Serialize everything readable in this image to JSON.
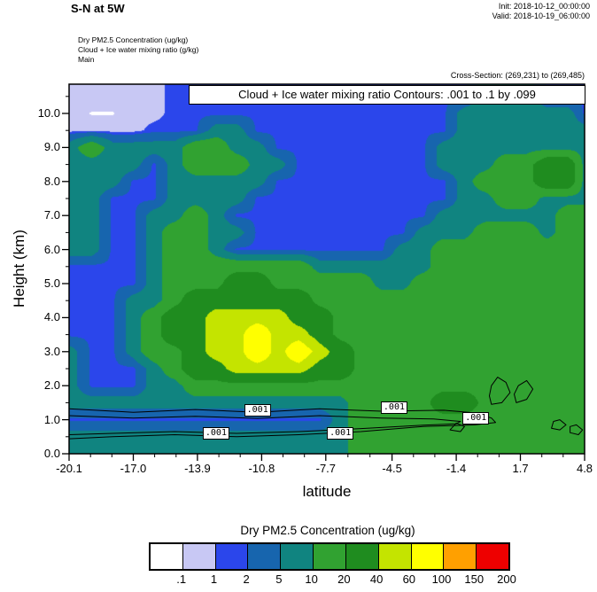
{
  "header": {
    "title": "S-N at 5W",
    "init": "Init: 2018-10-12_00:00:00",
    "valid": "Valid: 2018-10-19_06:00:00",
    "field_lines": [
      "Dry PM2.5 Concentration   (ug/kg)",
      "Cloud + Ice water mixing ratio   (g/kg)",
      "Main"
    ],
    "cross_section": "Cross-Section: (269,231) to (269,485)"
  },
  "chart_data": {
    "type": "heatmap",
    "title": "Cloud + Ice water mixing ratio Contours: .001 to .1 by .099",
    "xlabel": "latitude",
    "ylabel": "Height (km)",
    "xlim": [
      -20.1,
      4.8
    ],
    "ylim": [
      0,
      10.86
    ],
    "x_ticks": [
      -20.1,
      -17.0,
      -13.9,
      -10.8,
      -7.7,
      -4.5,
      -1.4,
      1.7,
      4.8
    ],
    "x_tick_labels": [
      "-20.1",
      "-17.0",
      "-13.9",
      "-10.8",
      "-7.7",
      "-4.5",
      "-1.4",
      "1.7",
      "4.8"
    ],
    "y_ticks": [
      0,
      1,
      2,
      3,
      4,
      5,
      6,
      7,
      8,
      9,
      10
    ],
    "y_tick_labels": [
      "0.0",
      "1.0",
      "2.0",
      "3.0",
      "4.0",
      "5.0",
      "6.0",
      "7.0",
      "8.0",
      "9.0",
      "10.0"
    ],
    "levels": [
      0.1,
      1,
      2,
      5,
      10,
      20,
      40,
      60,
      100,
      150
    ],
    "colors": [
      "#FFFFFF",
      "#C8C8F4",
      "#2B46EB",
      "#1765AE",
      "#108480",
      "#31A231",
      "#1F8C1F",
      "#C4E400",
      "#FFFF00",
      "#FFA000",
      "#EE0000"
    ],
    "grid": {
      "x": [
        -20.1,
        -19,
        -18,
        -17,
        -16,
        -15,
        -14,
        -13,
        -12,
        -11,
        -10,
        -9,
        -8,
        -7,
        -6,
        -5,
        -4,
        -3,
        -2,
        -1,
        0,
        1,
        2,
        3,
        4,
        4.8
      ],
      "y": [
        0,
        0.5,
        1,
        1.5,
        2,
        2.5,
        3,
        3.5,
        4,
        4.5,
        5,
        5.5,
        6,
        6.5,
        7,
        7.5,
        8,
        8.5,
        9,
        9.5,
        10,
        10.5
      ],
      "values": [
        [
          7,
          7,
          7,
          7,
          7,
          7,
          7,
          7,
          7,
          7,
          7,
          7,
          7,
          7,
          15,
          15,
          15,
          15,
          15,
          15,
          15,
          15,
          15,
          15,
          15,
          15
        ],
        [
          7,
          7,
          7,
          7,
          7,
          7,
          7,
          7,
          7,
          7,
          7,
          7,
          7,
          7,
          15,
          15,
          15,
          15,
          15,
          15,
          15,
          15,
          15,
          15,
          15,
          15
        ],
        [
          1.5,
          1.5,
          1.5,
          1.5,
          1.5,
          1.5,
          1.5,
          1.5,
          1.5,
          1.5,
          1.5,
          1.5,
          1.5,
          7,
          15,
          15,
          15,
          15,
          15,
          15,
          15,
          15,
          15,
          15,
          15,
          15
        ],
        [
          7,
          7,
          7,
          7,
          7,
          7,
          7,
          7,
          7,
          7,
          7,
          7,
          7,
          7,
          15,
          15,
          15,
          15,
          30,
          30,
          15,
          15,
          15,
          15,
          15,
          15
        ],
        [
          7,
          1.5,
          1.5,
          1.5,
          7,
          7,
          15,
          15,
          15,
          15,
          15,
          15,
          15,
          15,
          15,
          15,
          15,
          15,
          15,
          15,
          15,
          15,
          15,
          15,
          15,
          15
        ],
        [
          7,
          1.5,
          1.5,
          1.5,
          7,
          15,
          30,
          30,
          50,
          50,
          50,
          50,
          30,
          30,
          15,
          15,
          15,
          15,
          15,
          15,
          15,
          15,
          15,
          15,
          15,
          15
        ],
        [
          7,
          1.5,
          1.5,
          7,
          15,
          15,
          30,
          50,
          50,
          80,
          50,
          80,
          50,
          30,
          15,
          15,
          15,
          15,
          15,
          15,
          15,
          15,
          15,
          15,
          15,
          15
        ],
        [
          1.5,
          1.5,
          1.5,
          7,
          15,
          30,
          30,
          50,
          50,
          80,
          50,
          50,
          30,
          15,
          15,
          15,
          15,
          15,
          15,
          15,
          15,
          15,
          15,
          15,
          15,
          15
        ],
        [
          1.5,
          1.5,
          1.5,
          7,
          15,
          30,
          30,
          50,
          50,
          50,
          50,
          30,
          30,
          15,
          15,
          15,
          15,
          15,
          15,
          15,
          15,
          15,
          15,
          15,
          15,
          15
        ],
        [
          1.5,
          1.5,
          1.5,
          7,
          7,
          15,
          30,
          30,
          30,
          30,
          30,
          30,
          15,
          15,
          15,
          15,
          15,
          15,
          15,
          15,
          15,
          15,
          15,
          15,
          15,
          15
        ],
        [
          1.5,
          1.5,
          1.5,
          1.5,
          7,
          15,
          15,
          15,
          30,
          30,
          15,
          15,
          15,
          15,
          15,
          7,
          7,
          15,
          15,
          15,
          15,
          15,
          15,
          15,
          15,
          15
        ],
        [
          1.5,
          1.5,
          1.5,
          1.5,
          7,
          15,
          15,
          15,
          15,
          15,
          15,
          15,
          7,
          7,
          7,
          7,
          7,
          7,
          15,
          15,
          15,
          15,
          15,
          15,
          15,
          15
        ],
        [
          7,
          7,
          1.5,
          1.5,
          7,
          15,
          15,
          7,
          1.5,
          1.5,
          1.5,
          1.5,
          1.5,
          1.5,
          1.5,
          1.5,
          7,
          7,
          15,
          15,
          15,
          15,
          15,
          15,
          15,
          15
        ],
        [
          7,
          7,
          1.5,
          1.5,
          7,
          15,
          15,
          7,
          7,
          1.5,
          1.5,
          1.5,
          1.5,
          1.5,
          1.5,
          1.5,
          1.5,
          7,
          7,
          7,
          15,
          15,
          15,
          7,
          15,
          15
        ],
        [
          7,
          7,
          1.5,
          1.5,
          7,
          7,
          15,
          7,
          1.5,
          1.5,
          1.5,
          1.5,
          1.5,
          1.5,
          1.5,
          1.5,
          1.5,
          1.5,
          7,
          7,
          7,
          7,
          7,
          7,
          15,
          15
        ],
        [
          7,
          7,
          1.5,
          1.5,
          1.5,
          7,
          7,
          7,
          7,
          1.5,
          1.5,
          1.5,
          1.5,
          1.5,
          1.5,
          1.5,
          1.5,
          1.5,
          1.5,
          7,
          7,
          15,
          15,
          7,
          7,
          7
        ],
        [
          7,
          7,
          7,
          1.5,
          1.5,
          7,
          7,
          7,
          7,
          7,
          1.5,
          1.5,
          1.5,
          1.5,
          1.5,
          1.5,
          1.5,
          1.5,
          1.5,
          7,
          15,
          15,
          15,
          30,
          30,
          7
        ],
        [
          7,
          7,
          7,
          7,
          1.5,
          7,
          15,
          15,
          15,
          7,
          7,
          1.5,
          1.5,
          1.5,
          1.5,
          1.5,
          1.5,
          1.5,
          7,
          7,
          7,
          15,
          15,
          30,
          30,
          7
        ],
        [
          7,
          15,
          7,
          7,
          7,
          7,
          15,
          15,
          7,
          7,
          1.5,
          1.5,
          1.5,
          1.5,
          1.5,
          1.5,
          1.5,
          1.5,
          7,
          7,
          7,
          7,
          7,
          7,
          7,
          7
        ],
        [
          0.5,
          0.5,
          0.5,
          0.5,
          1.5,
          1.5,
          1.5,
          7,
          7,
          1.5,
          1.5,
          1.5,
          1.5,
          1.5,
          1.5,
          1.5,
          1.5,
          1.5,
          1.5,
          7,
          7,
          7,
          7,
          7,
          7,
          7
        ],
        [
          0.5,
          0.05,
          0.05,
          0.5,
          0.5,
          1.5,
          1.5,
          1.5,
          1.5,
          1.5,
          1.5,
          1.5,
          1.5,
          1.5,
          1.5,
          1.5,
          1.5,
          1.5,
          1.5,
          7,
          7,
          7,
          7,
          7,
          7,
          1.5
        ],
        [
          0.5,
          0.5,
          0.5,
          0.5,
          0.5,
          1.5,
          1.5,
          1.5,
          1.5,
          1.5,
          1.5,
          1.5,
          1.5,
          1.5,
          1.5,
          1.5,
          1.5,
          1.5,
          1.5,
          1.5,
          7,
          7,
          7,
          1.5,
          1.5,
          1.5
        ]
      ]
    },
    "contours": {
      "level_label": ".001",
      "labels": [
        {
          "lat": -11.0,
          "h": 1.27
        },
        {
          "lat": -4.4,
          "h": 1.35
        },
        {
          "lat": -0.45,
          "h": 1.05
        },
        {
          "lat": -13.0,
          "h": 0.6
        },
        {
          "lat": -7.0,
          "h": 0.6
        }
      ],
      "paths": [
        {
          "closed": false,
          "pts": [
            [
              -20.1,
              1.32
            ],
            [
              -17,
              1.22
            ],
            [
              -14,
              1.3
            ],
            [
              -11,
              1.22
            ],
            [
              -8,
              1.32
            ],
            [
              -5,
              1.25
            ],
            [
              -2,
              1.28
            ],
            [
              -0.5,
              1.2
            ],
            [
              0.3,
              1.05
            ],
            [
              0.5,
              0.92
            ],
            [
              -0.5,
              0.85
            ],
            [
              -3,
              0.8
            ],
            [
              -6,
              0.65
            ],
            [
              -9,
              0.56
            ],
            [
              -12,
              0.5
            ],
            [
              -15,
              0.56
            ],
            [
              -18,
              0.5
            ],
            [
              -20.1,
              0.44
            ]
          ]
        },
        {
          "closed": false,
          "pts": [
            [
              -20.1,
              1.12
            ],
            [
              -17,
              1.05
            ],
            [
              -14,
              1.1
            ],
            [
              -11,
              1.04
            ],
            [
              -8,
              1.12
            ],
            [
              -5,
              1.05
            ],
            [
              -2.5,
              1.02
            ],
            [
              -1.2,
              0.95
            ],
            [
              -1.4,
              0.88
            ],
            [
              -3,
              0.84
            ],
            [
              -6,
              0.74
            ],
            [
              -9,
              0.65
            ],
            [
              -12,
              0.6
            ],
            [
              -15,
              0.65
            ],
            [
              -18,
              0.6
            ],
            [
              -20.1,
              0.56
            ]
          ]
        },
        {
          "closed": true,
          "pts": [
            [
              0.3,
              1.45
            ],
            [
              0.8,
              1.5
            ],
            [
              1.2,
              1.8
            ],
            [
              1.0,
              2.1
            ],
            [
              0.6,
              2.25
            ],
            [
              0.3,
              2.0
            ],
            [
              0.2,
              1.7
            ]
          ]
        },
        {
          "closed": true,
          "pts": [
            [
              1.5,
              1.5
            ],
            [
              2.0,
              1.6
            ],
            [
              2.3,
              1.9
            ],
            [
              2.0,
              2.15
            ],
            [
              1.6,
              2.0
            ],
            [
              1.4,
              1.75
            ]
          ]
        },
        {
          "closed": true,
          "pts": [
            [
              3.2,
              0.75
            ],
            [
              3.6,
              0.7
            ],
            [
              3.9,
              0.85
            ],
            [
              3.6,
              1.0
            ],
            [
              3.3,
              0.95
            ]
          ]
        },
        {
          "closed": true,
          "pts": [
            [
              4.1,
              0.62
            ],
            [
              4.5,
              0.56
            ],
            [
              4.7,
              0.7
            ],
            [
              4.4,
              0.85
            ],
            [
              4.1,
              0.8
            ]
          ]
        },
        {
          "closed": true,
          "pts": [
            [
              -1.7,
              0.7
            ],
            [
              -1.2,
              0.65
            ],
            [
              -1.0,
              0.8
            ],
            [
              -1.4,
              0.9
            ]
          ]
        }
      ]
    },
    "colorbar": {
      "title": "Dry PM2.5 Concentration  (ug/kg)",
      "tick_labels": [
        ".1",
        "1",
        "2",
        "5",
        "10",
        "20",
        "40",
        "60",
        "100",
        "150",
        "200"
      ]
    }
  }
}
